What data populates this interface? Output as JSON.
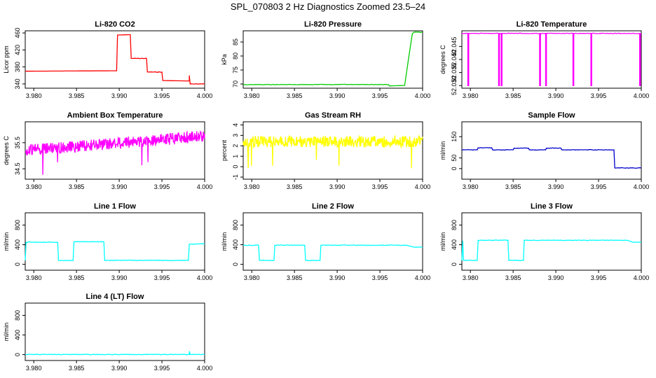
{
  "title": "SPL_070803  2 Hz Diagnostics Zoomed 23.5–24",
  "colors": {
    "frame": "#000000"
  },
  "chart_data": [
    {
      "type": "line",
      "title": "Li-820 CO2",
      "ylabel": "Licor ppm",
      "color": "#ff0000",
      "xlim": [
        3.979,
        4.0
      ],
      "ylim": [
        330,
        465
      ],
      "yticks": [
        "340",
        "380",
        "420",
        "460"
      ],
      "xticks": [
        "3.980",
        "3.985",
        "3.990",
        "3.995",
        "4.000"
      ],
      "x": [
        3.979,
        3.9897,
        3.9898,
        3.9913,
        3.9914,
        3.9932,
        3.9933,
        3.995,
        3.9951,
        3.9982,
        3.9982,
        3.9983,
        3.999,
        4.0
      ],
      "y": [
        370,
        371,
        455,
        456,
        400,
        400,
        368,
        368,
        348,
        347,
        360,
        340,
        340,
        340
      ]
    },
    {
      "type": "line",
      "title": "Li-820 Pressure",
      "ylabel": "kPa",
      "color": "#00cc00",
      "xlim": [
        3.979,
        4.0
      ],
      "ylim": [
        68.5,
        89
      ],
      "yticks": [
        "70",
        "75",
        "80",
        "85"
      ],
      "xticks": [
        "3.980",
        "3.985",
        "3.990",
        "3.995",
        "4.000"
      ],
      "x": [
        3.979,
        3.996,
        3.9961,
        3.9979,
        3.9983,
        3.9988,
        3.999,
        4.0
      ],
      "y": [
        69.8,
        69.8,
        69.3,
        69.5,
        78,
        88,
        88.5,
        88.5
      ]
    },
    {
      "type": "line",
      "title": "Li-820 Temperature",
      "ylabel": "degrees C",
      "color": "#ff00ff",
      "xlim": [
        3.979,
        4.0
      ],
      "ylim": [
        52.029,
        52.051
      ],
      "yticks": [
        "52.030",
        "52.035",
        "52.040",
        "52.045"
      ],
      "xticks": [
        "3.980",
        "3.985",
        "3.990",
        "3.995",
        "4.000"
      ],
      "x": [
        3.979,
        3.9797,
        3.9797,
        3.9798,
        3.9798,
        3.9833,
        3.9833,
        3.9834,
        3.9834,
        3.9836,
        3.9836,
        3.9837,
        3.9837,
        3.9881,
        3.9881,
        3.9882,
        3.9882,
        3.9888,
        3.9888,
        3.9889,
        3.9889,
        3.992,
        3.992,
        3.9921,
        3.9921,
        3.9941,
        3.9941,
        3.9942,
        3.9942,
        3.9998,
        3.9998,
        3.9999,
        3.9999,
        4.0
      ],
      "y": [
        52.05,
        52.05,
        52.03,
        52.03,
        52.05,
        52.05,
        52.03,
        52.03,
        52.05,
        52.05,
        52.03,
        52.03,
        52.05,
        52.05,
        52.03,
        52.03,
        52.05,
        52.05,
        52.03,
        52.03,
        52.05,
        52.05,
        52.03,
        52.03,
        52.05,
        52.05,
        52.03,
        52.03,
        52.05,
        52.05,
        52.03,
        52.03,
        52.05,
        52.05
      ]
    },
    {
      "type": "line",
      "title": "Ambient Box Temperature",
      "ylabel": "degrees C",
      "color": "#ff00ff",
      "xlim": [
        3.979,
        4.0
      ],
      "ylim": [
        34.1,
        36.3
      ],
      "yticks": [
        "34.5",
        "35.5"
      ],
      "xticks": [
        "3.980",
        "3.985",
        "3.990",
        "3.995",
        "4.000"
      ],
      "x": [
        3.979,
        4.0
      ],
      "y": [
        35.2,
        35.75
      ],
      "noise": 0.22
    },
    {
      "type": "line",
      "title": "Gas Stream RH",
      "ylabel": "percent",
      "color": "#ffff00",
      "xlim": [
        3.979,
        4.0
      ],
      "ylim": [
        -1.2,
        4.3
      ],
      "yticks": [
        "-1",
        "0",
        "1",
        "2",
        "3",
        "4"
      ],
      "xticks": [
        "3.980",
        "3.985",
        "3.990",
        "3.995",
        "4.000"
      ],
      "x": [
        3.979,
        4.0
      ],
      "y": [
        2.4,
        2.4
      ],
      "noise": 0.55
    },
    {
      "type": "line",
      "title": "Sample Flow",
      "ylabel": "ml/min",
      "color": "#0000cc",
      "xlim": [
        3.979,
        4.0
      ],
      "ylim": [
        -50,
        220
      ],
      "yticks": [
        "0",
        "50",
        "150"
      ],
      "xticks": [
        "3.980",
        "3.985",
        "3.990",
        "3.995",
        "4.000"
      ],
      "x": [
        3.979,
        3.9808,
        3.9809,
        3.9825,
        3.9826,
        3.985,
        3.9851,
        3.9868,
        3.9869,
        3.9888,
        3.9889,
        3.9906,
        3.9907,
        3.9968,
        3.9969,
        4.0
      ],
      "y": [
        88,
        88,
        98,
        98,
        88,
        88,
        96,
        96,
        88,
        88,
        96,
        96,
        88,
        88,
        3,
        3
      ]
    },
    {
      "type": "line",
      "title": "Line 1 Flow",
      "ylabel": "ml/min",
      "color": "#00ffff",
      "xlim": [
        3.979,
        4.0
      ],
      "ylim": [
        -120,
        1050
      ],
      "yticks": [
        "0",
        "400",
        "800"
      ],
      "xticks": [
        "3.980",
        "3.985",
        "3.990",
        "3.995",
        "4.000"
      ],
      "x": [
        3.979,
        3.9791,
        3.9828,
        3.9829,
        3.9846,
        3.9847,
        3.9882,
        3.9883,
        3.9981,
        3.9982,
        3.9985,
        4.0
      ],
      "y": [
        80,
        450,
        450,
        80,
        80,
        460,
        460,
        80,
        80,
        410,
        410,
        420
      ]
    },
    {
      "type": "line",
      "title": "Line 2 Flow",
      "ylabel": "ml/min",
      "color": "#00ffff",
      "xlim": [
        3.979,
        4.0
      ],
      "ylim": [
        -120,
        1050
      ],
      "yticks": [
        "0",
        "400",
        "800"
      ],
      "xticks": [
        "3.980",
        "3.985",
        "3.990",
        "3.995",
        "4.000"
      ],
      "x": [
        3.979,
        3.9808,
        3.9809,
        3.9826,
        3.9827,
        3.9862,
        3.9863,
        3.988,
        3.9881,
        3.9981,
        3.999,
        4.0
      ],
      "y": [
        390,
        390,
        80,
        80,
        390,
        390,
        80,
        80,
        390,
        390,
        350,
        350
      ]
    },
    {
      "type": "line",
      "title": "Line 3 Flow",
      "ylabel": "ml/min",
      "color": "#00ffff",
      "xlim": [
        3.979,
        4.0
      ],
      "ylim": [
        -120,
        1050
      ],
      "yticks": [
        "0",
        "400",
        "800"
      ],
      "xticks": [
        "3.980",
        "3.985",
        "3.990",
        "3.995",
        "4.000"
      ],
      "x": [
        3.979,
        3.9791,
        3.9792,
        3.9808,
        3.9809,
        3.9844,
        3.9845,
        3.9862,
        3.9863,
        3.9984,
        3.999,
        4.0
      ],
      "y": [
        80,
        480,
        80,
        80,
        490,
        490,
        80,
        80,
        490,
        490,
        450,
        450
      ]
    },
    {
      "type": "line",
      "title": "Line 4 (LT) Flow",
      "ylabel": "ml/min",
      "color": "#00ffff",
      "xlim": [
        3.979,
        4.0
      ],
      "ylim": [
        -120,
        1050
      ],
      "yticks": [
        "0",
        "400",
        "800"
      ],
      "xticks": [
        "3.980",
        "3.985",
        "3.990",
        "3.995",
        "4.000"
      ],
      "x": [
        3.979,
        3.9982,
        3.9982,
        3.9983,
        3.9984,
        4.0
      ],
      "y": [
        3,
        3,
        70,
        5,
        3,
        3
      ]
    }
  ]
}
